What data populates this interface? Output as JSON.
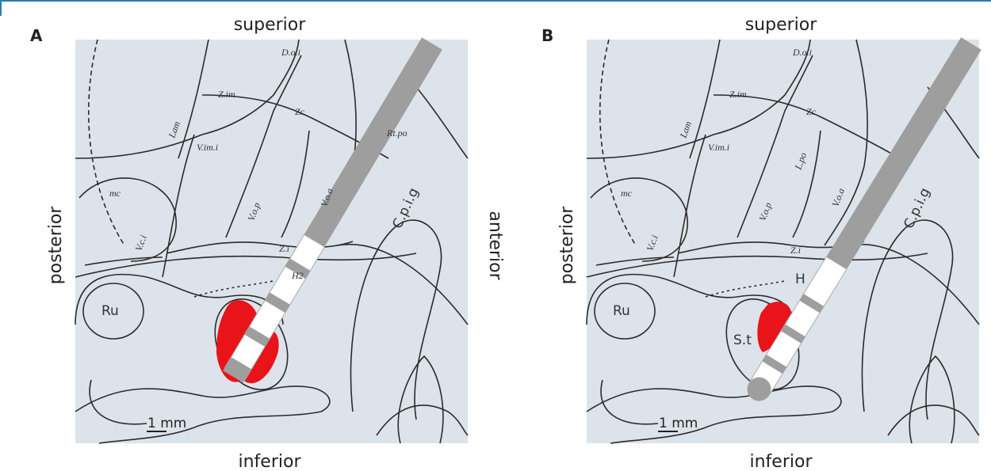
{
  "panels": [
    {
      "label": "A",
      "orientation": {
        "superior": "superior",
        "inferior": "inferior",
        "posterior": "posterior",
        "anterior": "anterior"
      },
      "regions": [
        "D.o.i",
        "Z.im",
        "Zc",
        "Lam",
        "V.im.i",
        "Rt.po",
        "mc",
        "V.o.p",
        "V.o.a",
        "C.p.i.g",
        "V.c.i",
        "Z.i",
        "H2",
        "Ru"
      ],
      "scale": "1 mm"
    },
    {
      "label": "B",
      "orientation": {
        "superior": "superior",
        "inferior": "inferior",
        "posterior": "posterior"
      },
      "regions": [
        "D.o.i",
        "Z.im",
        "Zc",
        "Lam",
        "V.im.i",
        "L.po",
        "mc",
        "V.o.p",
        "V.o.a",
        "C.p.i.g",
        "V.c.i",
        "Z.i",
        "H",
        "Ru",
        "S.t"
      ],
      "scale": "1 mm"
    }
  ]
}
